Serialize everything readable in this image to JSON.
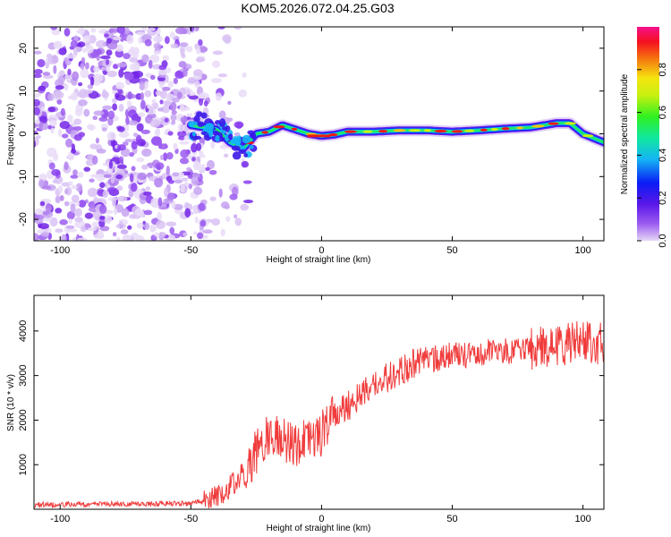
{
  "title": "KOM5.2026.072.04.25.G03",
  "chart_data": [
    {
      "type": "heatmap",
      "name": "spectrogram",
      "xlabel": "Height of straight line (km)",
      "ylabel": "Frequency (Hz)",
      "xlim": [
        -110,
        108
      ],
      "ylim": [
        -25,
        25
      ],
      "xticks": [
        -100,
        -50,
        0,
        50,
        100
      ],
      "yticks": [
        -20,
        -10,
        0,
        10,
        20
      ],
      "xtick_labels": [
        "-100",
        "-50",
        "0",
        "50",
        "100"
      ],
      "ytick_labels": [
        "-20",
        "-10",
        "0",
        "10",
        "20"
      ],
      "colorbar": {
        "label": "Normalized spectral amplitude",
        "range": [
          0,
          1
        ],
        "ticks": [
          0.0,
          0.2,
          0.4,
          0.6,
          0.8
        ],
        "tick_labels": [
          "0.0",
          "0.2",
          "0.4",
          "0.6",
          "0.8"
        ],
        "colormap": "rainbow (purple-blue-cyan-green-yellow-red-magenta)"
      },
      "signal_track": {
        "description": "narrow high-amplitude line near 0 Hz",
        "points": [
          [
            -50,
            2
          ],
          [
            -40,
            1
          ],
          [
            -35,
            -2
          ],
          [
            -30,
            -3.5
          ],
          [
            -25,
            0
          ],
          [
            -20,
            0.5
          ],
          [
            -15,
            2
          ],
          [
            -10,
            1
          ],
          [
            -5,
            0
          ],
          [
            0,
            -0.5
          ],
          [
            5,
            -0.2
          ],
          [
            10,
            0.5
          ],
          [
            20,
            0.5
          ],
          [
            30,
            0.8
          ],
          [
            40,
            0.8
          ],
          [
            50,
            0.5
          ],
          [
            60,
            0.8
          ],
          [
            70,
            1.2
          ],
          [
            80,
            1.5
          ],
          [
            90,
            2.5
          ],
          [
            95,
            2.5
          ],
          [
            100,
            0
          ],
          [
            108,
            -2
          ]
        ]
      },
      "noise_region_x_max": -45
    },
    {
      "type": "line",
      "name": "snr",
      "xlabel": "Height of straight line (km)",
      "ylabel": "SNR (10 * v/v)",
      "xlim": [
        -110,
        108
      ],
      "ylim": [
        0,
        4800
      ],
      "xticks": [
        -100,
        -50,
        0,
        50,
        100
      ],
      "yticks": [
        1000,
        2000,
        3000,
        4000
      ],
      "xtick_labels": [
        "-100",
        "-50",
        "0",
        "50",
        "100"
      ],
      "ytick_labels": [
        "1000",
        "2000",
        "3000",
        "4000"
      ],
      "color": "#f03c3c",
      "trend_points": [
        [
          -110,
          100
        ],
        [
          -50,
          130
        ],
        [
          -45,
          180
        ],
        [
          -40,
          300
        ],
        [
          -35,
          500
        ],
        [
          -30,
          800
        ],
        [
          -25,
          1300
        ],
        [
          -20,
          1700
        ],
        [
          -15,
          1600
        ],
        [
          -10,
          1450
        ],
        [
          -5,
          1500
        ],
        [
          0,
          1700
        ],
        [
          5,
          2100
        ],
        [
          10,
          2300
        ],
        [
          15,
          2600
        ],
        [
          20,
          2800
        ],
        [
          25,
          2950
        ],
        [
          30,
          3100
        ],
        [
          35,
          3250
        ],
        [
          40,
          3350
        ],
        [
          50,
          3450
        ],
        [
          60,
          3500
        ],
        [
          70,
          3550
        ],
        [
          80,
          3600
        ],
        [
          90,
          3700
        ],
        [
          100,
          3750
        ],
        [
          108,
          3700
        ]
      ]
    }
  ]
}
